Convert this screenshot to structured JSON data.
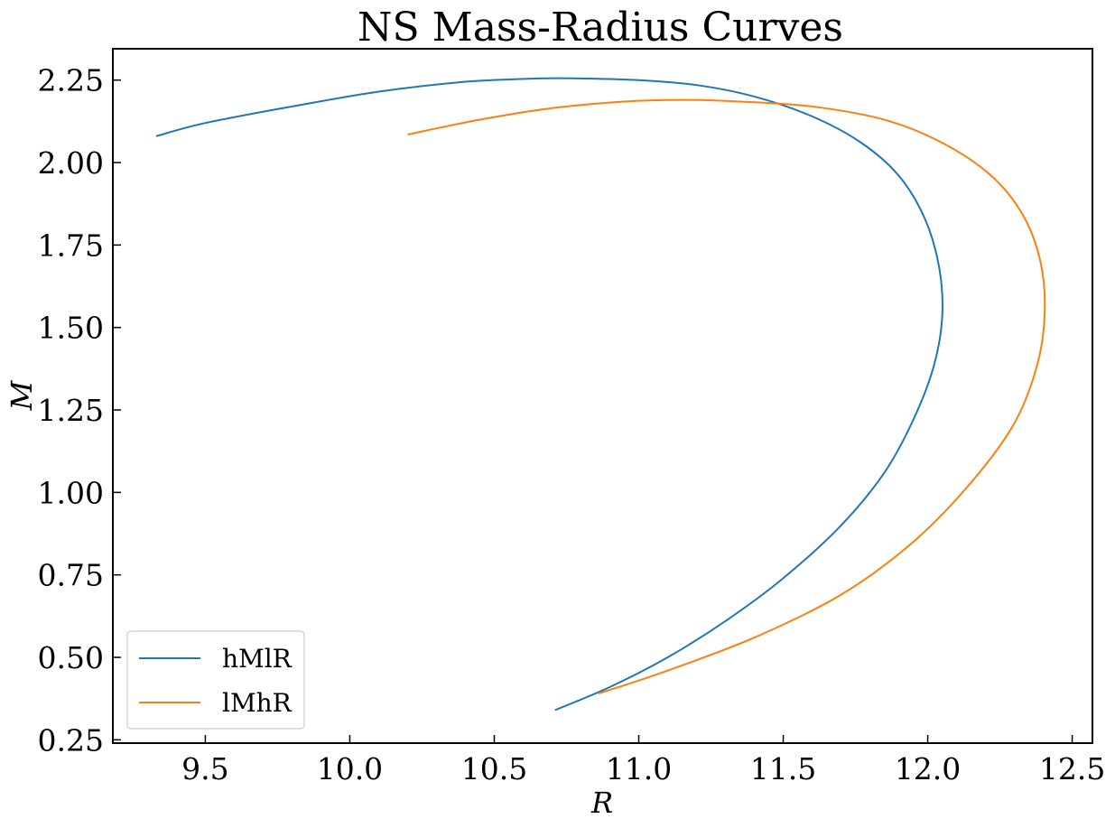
{
  "chart_data": {
    "type": "line",
    "title": "NS Mass-Radius Curves",
    "xlabel": "R",
    "ylabel": "M",
    "xlim": [
      9.18,
      12.57
    ],
    "ylim": [
      0.24,
      2.345
    ],
    "xticks": [
      9.5,
      10.0,
      10.5,
      11.0,
      11.5,
      12.0,
      12.5
    ],
    "xtick_labels": [
      "9.5",
      "10.0",
      "10.5",
      "11.0",
      "11.5",
      "12.0",
      "12.5"
    ],
    "yticks": [
      0.25,
      0.5,
      0.75,
      1.0,
      1.25,
      1.5,
      1.75,
      2.0,
      2.25
    ],
    "ytick_labels": [
      "0.25",
      "0.50",
      "0.75",
      "1.00",
      "1.25",
      "1.50",
      "1.75",
      "2.00",
      "2.25"
    ],
    "grid": false,
    "legend_position": "lower-left",
    "series": [
      {
        "name": "hMlR",
        "color": "#1f77b4",
        "x": [
          10.71,
          10.9,
          11.1,
          11.3,
          11.5,
          11.7,
          11.85,
          11.95,
          12.02,
          12.05,
          12.04,
          11.99,
          11.9,
          11.77,
          11.6,
          11.4,
          11.2,
          11.0,
          10.8,
          10.65,
          10.4,
          10.1,
          9.8,
          9.5,
          9.33
        ],
        "y": [
          0.34,
          0.41,
          0.5,
          0.61,
          0.74,
          0.9,
          1.06,
          1.22,
          1.38,
          1.53,
          1.68,
          1.83,
          1.96,
          2.06,
          2.14,
          2.2,
          2.235,
          2.25,
          2.255,
          2.255,
          2.245,
          2.215,
          2.17,
          2.12,
          2.08
        ]
      },
      {
        "name": "lMhR",
        "color": "#ff7f0e",
        "x": [
          10.86,
          11.1,
          11.4,
          11.7,
          11.95,
          12.15,
          12.3,
          12.38,
          12.405,
          12.39,
          12.33,
          12.22,
          12.05,
          11.85,
          11.6,
          11.35,
          11.15,
          10.95,
          10.7,
          10.45,
          10.2
        ],
        "y": [
          0.39,
          0.46,
          0.56,
          0.69,
          0.85,
          1.03,
          1.21,
          1.39,
          1.55,
          1.7,
          1.84,
          1.96,
          2.06,
          2.13,
          2.17,
          2.185,
          2.19,
          2.185,
          2.165,
          2.13,
          2.085
        ]
      }
    ]
  }
}
